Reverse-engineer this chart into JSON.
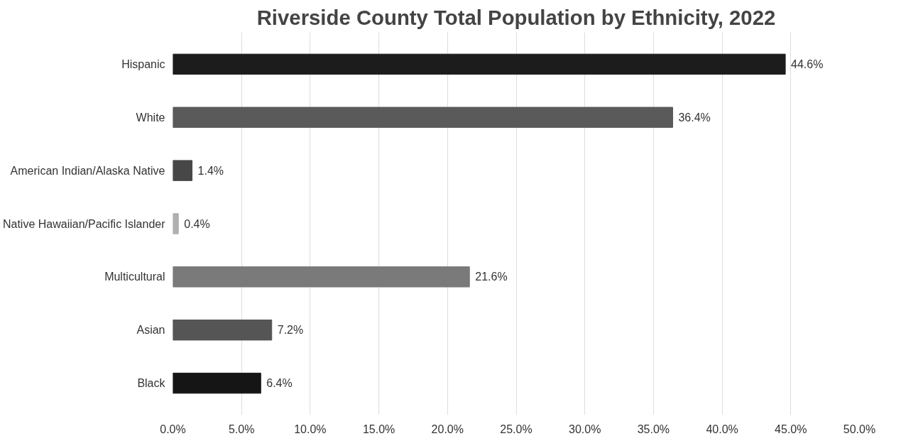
{
  "chart_data": {
    "type": "bar",
    "orientation": "horizontal",
    "title": "Riverside County Total Population by Ethnicity, 2022",
    "categories": [
      "Hispanic",
      "White",
      "American Indian/Alaska Native",
      "Native Hawaiian/Pacific Islander",
      "Multicultural",
      "Asian",
      "Black"
    ],
    "values": [
      44.6,
      36.4,
      1.4,
      0.4,
      21.6,
      7.2,
      6.4
    ],
    "colors": [
      "#1c1c1c",
      "#5a5a5a",
      "#474747",
      "#b0b0b0",
      "#7a7a7a",
      "#555555",
      "#151515"
    ],
    "value_labels": [
      "44.6%",
      "36.4%",
      "1.4%",
      "0.4%",
      "21.6%",
      "7.2%",
      "6.4%"
    ],
    "xlim": [
      0,
      50
    ],
    "xticks": [
      {
        "value": 0,
        "label": "0.0%"
      },
      {
        "value": 5,
        "label": "5.0%"
      },
      {
        "value": 10,
        "label": "10.0%"
      },
      {
        "value": 15,
        "label": "15.0%"
      },
      {
        "value": 20,
        "label": "20.0%"
      },
      {
        "value": 25,
        "label": "25.0%"
      },
      {
        "value": 30,
        "label": "30.0%"
      },
      {
        "value": 35,
        "label": "35.0%"
      },
      {
        "value": 40,
        "label": "40.0%"
      },
      {
        "value": 45,
        "label": "45.0%"
      },
      {
        "value": 50,
        "label": "50.0%"
      }
    ],
    "grid": "x"
  }
}
